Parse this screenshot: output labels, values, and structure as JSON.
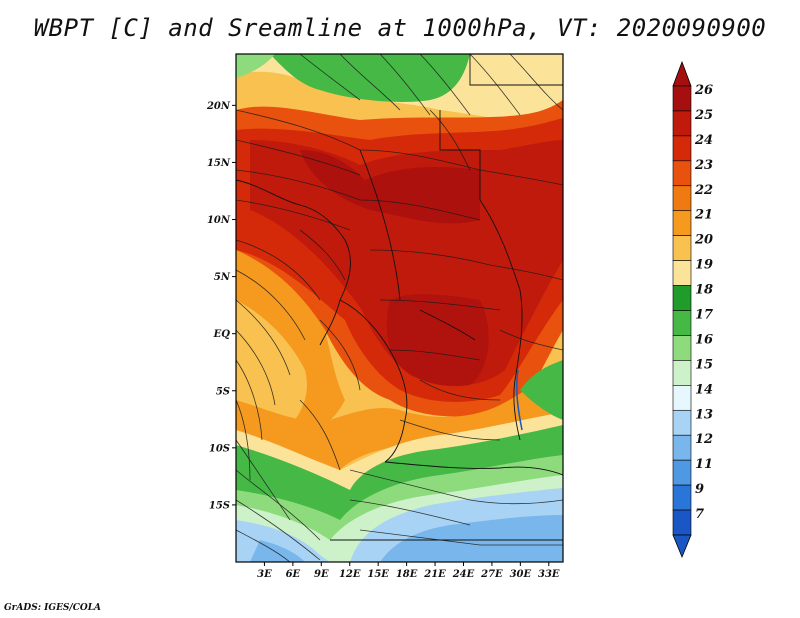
{
  "title": "WBPT [C] and Sreamline at 1000hPa, VT: 2020090900",
  "credit": "GrADS: IGES/COLA",
  "map": {
    "lat_ticks": [
      {
        "label": "20N",
        "value": 20
      },
      {
        "label": "15N",
        "value": 15
      },
      {
        "label": "10N",
        "value": 10
      },
      {
        "label": "5N",
        "value": 5
      },
      {
        "label": "EQ",
        "value": 0
      },
      {
        "label": "5S",
        "value": -5
      },
      {
        "label": "10S",
        "value": -10
      },
      {
        "label": "15S",
        "value": -15
      }
    ],
    "lon_ticks": [
      {
        "label": "3E",
        "value": 3
      },
      {
        "label": "6E",
        "value": 6
      },
      {
        "label": "9E",
        "value": 9
      },
      {
        "label": "12E",
        "value": 12
      },
      {
        "label": "15E",
        "value": 15
      },
      {
        "label": "18E",
        "value": 18
      },
      {
        "label": "21E",
        "value": 21
      },
      {
        "label": "24E",
        "value": 24
      },
      {
        "label": "27E",
        "value": 27
      },
      {
        "label": "30E",
        "value": 30
      },
      {
        "label": "33E",
        "value": 33
      }
    ],
    "lon_range": [
      0,
      34.5
    ],
    "lat_range": [
      -20,
      24.5
    ]
  },
  "colorbar": {
    "labels": [
      "26",
      "25",
      "24",
      "23",
      "22",
      "21",
      "20",
      "19",
      "18",
      "17",
      "16",
      "15",
      "14",
      "13",
      "12",
      "11",
      "9",
      "7"
    ],
    "colors": [
      "#a50f0f",
      "#c01a0c",
      "#d52a0a",
      "#e8520e",
      "#f07a12",
      "#f59a1f",
      "#f8c150",
      "#fbe39a",
      "#1f9c2a",
      "#45b845",
      "#8edb7e",
      "#cdf2c9",
      "#e6f7fd",
      "#a9d3f4",
      "#79b6ec",
      "#4e98e4",
      "#2a76d8",
      "#1a56c4"
    ]
  }
}
